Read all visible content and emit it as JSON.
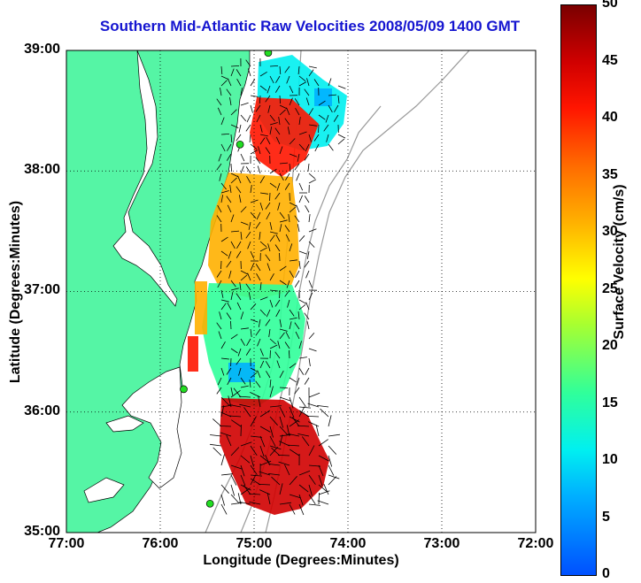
{
  "title": "Southern Mid-Atlantic Raw Velocities 2008/05/09 1400 GMT",
  "xaxis": {
    "label": "Longitude (Degrees:Minutes)",
    "ticks": [
      "77:00",
      "76:00",
      "75:00",
      "74:00",
      "73:00",
      "72:00"
    ]
  },
  "yaxis": {
    "label": "Latitude (Degrees:Minutes)",
    "ticks": [
      "39:00",
      "38:00",
      "37:00",
      "36:00",
      "35:00"
    ]
  },
  "colorbar": {
    "label": "Surface Velocity (cm/s)",
    "ticks": [
      "50",
      "45",
      "40",
      "35",
      "30",
      "25",
      "20",
      "15",
      "10",
      "5",
      "0"
    ],
    "range": [
      0,
      50
    ]
  },
  "colors": {
    "land": "#55f5a5",
    "water": "#ffffff",
    "title": "#1515d0",
    "station": "#22dd22",
    "contour": "#999999"
  },
  "chart_data": {
    "type": "map",
    "region": "Southern Mid-Atlantic",
    "date": "2008/05/09",
    "time": "1400 GMT",
    "lon_range": [
      -77,
      -72
    ],
    "lat_range": [
      35,
      39
    ],
    "stations": [
      {
        "lon": -74.85,
        "lat": 38.98
      },
      {
        "lon": -75.15,
        "lat": 38.22
      },
      {
        "lon": -75.75,
        "lat": 36.19
      },
      {
        "lon": -75.47,
        "lat": 35.24
      }
    ],
    "velocity_zones": [
      {
        "label": "north-cyan",
        "lon": -74.8,
        "lat": 38.55,
        "speed": 12
      },
      {
        "label": "north-red",
        "lon": -74.92,
        "lat": 38.4,
        "speed": 44
      },
      {
        "label": "delmarva-orange",
        "lon": -74.95,
        "lat": 37.5,
        "speed": 32
      },
      {
        "label": "central-green",
        "lon": -74.95,
        "lat": 36.8,
        "speed": 17
      },
      {
        "label": "hatteras-red",
        "lon": -74.6,
        "lat": 35.6,
        "speed": 48
      }
    ]
  }
}
